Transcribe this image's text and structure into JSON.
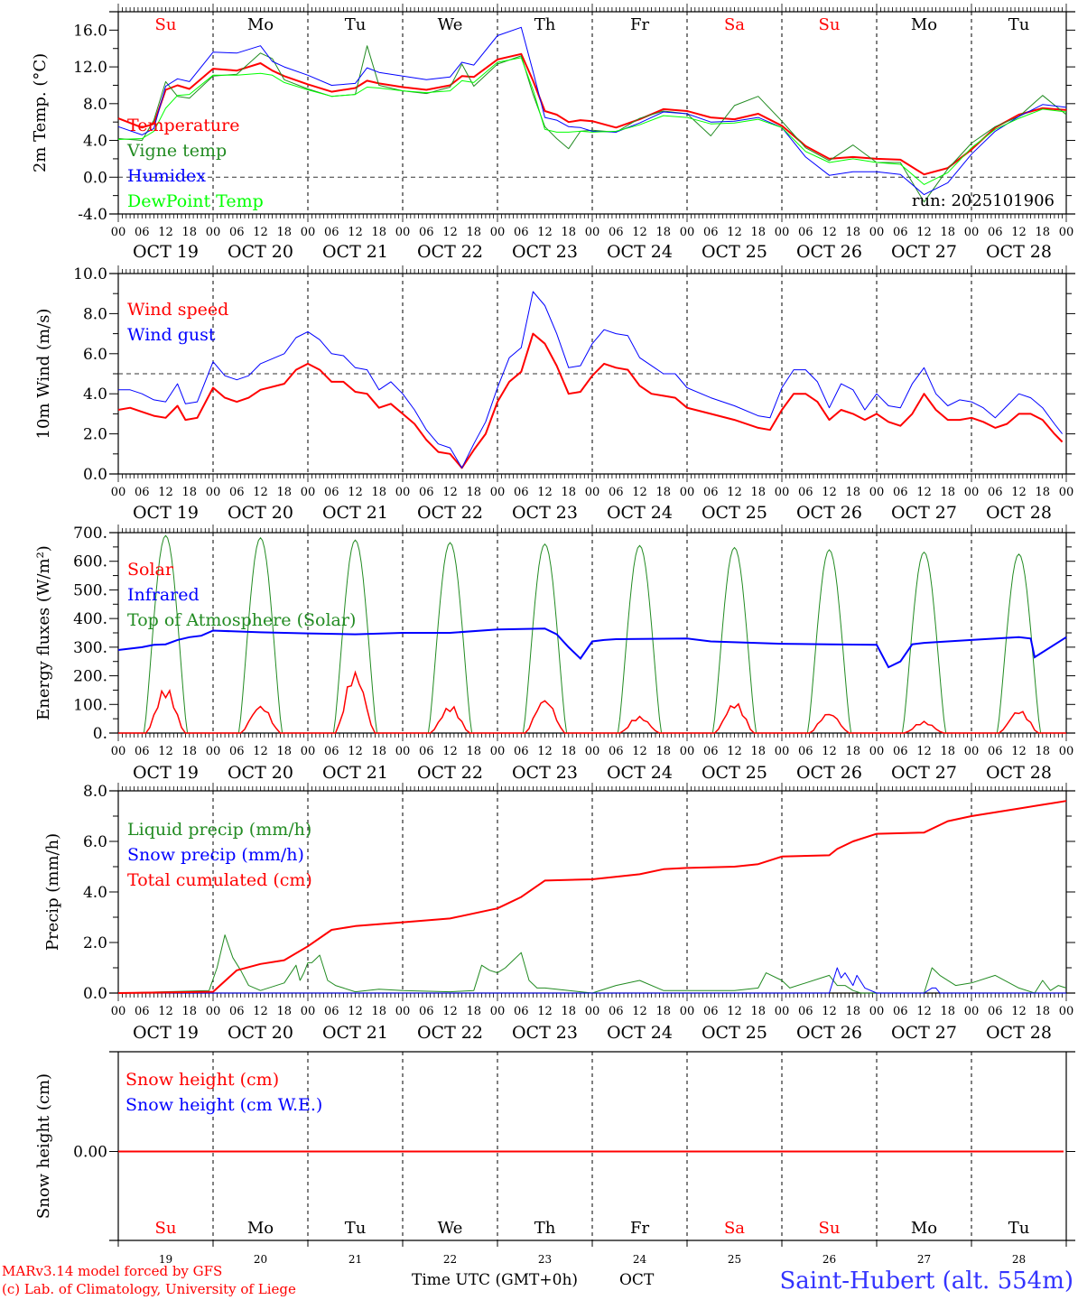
{
  "footer": {
    "model_line": "MARv3.14 model forced by GFS",
    "credit_line": "(c) Lab. of Climatology, University of Liege",
    "time_axis_label": "Time UTC (GMT+0h)",
    "month_label": "OCT",
    "station": "Saint-Hubert (alt. 554m)"
  },
  "colors": {
    "red": "#ff0000",
    "dark_green": "#228b22",
    "blue": "#0000ff",
    "light_green": "#00ff00",
    "black": "#000000"
  },
  "chart_data": [
    {
      "id": "temperature",
      "type": "line",
      "ylabel": "2m Temp. (°C)",
      "ylim": [
        -4,
        18
      ],
      "yticks": [
        "16.0",
        "12.0",
        "8.0",
        "4.0",
        "0.0",
        "-4.0"
      ],
      "ytick_values": [
        16,
        12,
        8,
        4,
        0,
        -4
      ],
      "reference_line": 0,
      "annotation": "run: 2025101906",
      "day_names": [
        "Su",
        "Mo",
        "Tu",
        "We",
        "Th",
        "Fr",
        "Sa",
        "Su",
        "Mo",
        "Tu"
      ],
      "day_name_colors": [
        "red",
        "black",
        "black",
        "black",
        "black",
        "black",
        "red",
        "red",
        "black",
        "black"
      ],
      "xtick_labels": [
        "00",
        "06",
        "12",
        "18"
      ],
      "date_labels": [
        "OCT 19",
        "OCT 20",
        "OCT 21",
        "OCT 22",
        "OCT 23",
        "OCT 24",
        "OCT 25",
        "OCT 26",
        "OCT 27",
        "OCT 28"
      ],
      "x_hours": [
        0,
        6,
        9,
        12,
        15,
        18,
        24,
        30,
        36,
        39,
        42,
        48,
        54,
        60,
        63,
        66,
        72,
        78,
        84,
        87,
        90,
        96,
        102,
        105,
        108,
        111,
        114,
        117,
        120,
        126,
        132,
        138,
        144,
        150,
        156,
        162,
        168,
        174,
        180,
        186,
        192,
        198,
        204,
        210,
        216,
        222,
        228,
        234,
        240
      ],
      "series": [
        {
          "name": "Temperature",
          "color": "red",
          "width": 2,
          "values": [
            6.4,
            5.4,
            5.8,
            9.5,
            10.0,
            9.6,
            11.8,
            11.6,
            12.4,
            11.6,
            11.0,
            10.1,
            9.3,
            9.7,
            10.5,
            10.2,
            9.8,
            9.5,
            10.0,
            11.0,
            10.9,
            12.8,
            13.4,
            10.5,
            7.2,
            6.8,
            6.0,
            6.2,
            6.1,
            5.4,
            6.3,
            7.4,
            7.2,
            6.5,
            6.3,
            6.9,
            5.6,
            3.4,
            2.0,
            2.2,
            2.0,
            1.9,
            0.3,
            1.0,
            3.0,
            5.4,
            6.8,
            7.5,
            7.3
          ]
        },
        {
          "name": "Vigne temp",
          "color": "dark_green",
          "width": 1,
          "values": [
            4.2,
            4.0,
            6.2,
            10.4,
            8.8,
            8.6,
            11.0,
            11.2,
            13.5,
            12.9,
            10.6,
            9.6,
            8.8,
            9.0,
            14.3,
            10.0,
            9.4,
            9.1,
            9.8,
            12.3,
            9.9,
            12.3,
            13.2,
            9.0,
            5.5,
            4.2,
            3.1,
            5.0,
            5.1,
            4.9,
            6.4,
            7.2,
            6.9,
            4.5,
            7.8,
            8.8,
            6.1,
            3.2,
            1.8,
            3.5,
            1.6,
            1.6,
            -2.7,
            0.9,
            3.7,
            5.5,
            6.6,
            8.9,
            6.8
          ]
        },
        {
          "name": "Humidex",
          "color": "blue",
          "width": 1,
          "values": [
            5.5,
            4.6,
            5.3,
            9.9,
            10.7,
            10.4,
            13.6,
            13.5,
            14.3,
            12.6,
            12.0,
            11.1,
            10.0,
            10.2,
            11.9,
            11.4,
            11.0,
            10.6,
            10.9,
            12.5,
            12.2,
            15.4,
            16.3,
            11.5,
            6.5,
            6.2,
            5.5,
            5.4,
            5.0,
            4.9,
            5.9,
            7.1,
            6.9,
            6.0,
            6.1,
            6.5,
            5.4,
            2.2,
            0.2,
            0.6,
            0.6,
            0.3,
            -1.9,
            -0.6,
            2.5,
            5.0,
            6.6,
            7.9,
            7.6
          ]
        },
        {
          "name": "DewPoint Temp",
          "color": "light_green",
          "width": 1,
          "values": [
            4.1,
            4.2,
            5.0,
            7.5,
            8.9,
            9.0,
            11.1,
            11.1,
            11.3,
            11.1,
            10.3,
            9.5,
            8.8,
            9.0,
            9.8,
            9.7,
            9.4,
            9.2,
            9.4,
            10.5,
            10.3,
            12.5,
            13.0,
            9.5,
            5.2,
            4.9,
            4.9,
            5.0,
            4.9,
            5.0,
            5.7,
            6.7,
            6.5,
            5.8,
            5.9,
            6.3,
            5.4,
            2.8,
            1.6,
            2.0,
            1.6,
            1.4,
            -0.8,
            0.5,
            3.2,
            5.2,
            6.4,
            7.4,
            7.1
          ]
        }
      ]
    },
    {
      "id": "wind",
      "type": "line",
      "ylabel": "10m Wind (m/s)",
      "ylim": [
        0,
        10
      ],
      "yticks": [
        "10.0",
        "8.0",
        "6.0",
        "4.0",
        "2.0",
        "0.0"
      ],
      "ytick_values": [
        10,
        8,
        6,
        4,
        2,
        0
      ],
      "reference_line": 5,
      "xtick_labels": [
        "00",
        "06",
        "12",
        "18"
      ],
      "date_labels": [
        "OCT 19",
        "OCT 20",
        "OCT 21",
        "OCT 22",
        "OCT 23",
        "OCT 24",
        "OCT 25",
        "OCT 26",
        "OCT 27",
        "OCT 28"
      ],
      "x_hours": [
        0,
        3,
        6,
        9,
        12,
        15,
        17,
        20,
        24,
        27,
        30,
        33,
        36,
        42,
        45,
        48,
        51,
        54,
        57,
        60,
        63,
        66,
        69,
        72,
        75,
        78,
        81,
        84,
        87,
        90,
        93,
        96,
        99,
        102,
        105,
        108,
        111,
        114,
        117,
        120,
        123,
        126,
        129,
        132,
        135,
        138,
        141,
        144,
        150,
        156,
        162,
        165,
        168,
        171,
        174,
        177,
        180,
        183,
        186,
        189,
        192,
        195,
        198,
        201,
        204,
        207,
        210,
        213,
        216,
        219,
        222,
        225,
        228,
        231,
        234,
        237,
        239
      ],
      "series": [
        {
          "name": "Wind speed",
          "color": "red",
          "width": 2,
          "values": [
            3.2,
            3.3,
            3.1,
            2.9,
            2.8,
            3.4,
            2.7,
            2.8,
            4.3,
            3.8,
            3.6,
            3.8,
            4.2,
            4.5,
            5.2,
            5.5,
            5.2,
            4.6,
            4.6,
            4.1,
            4.0,
            3.3,
            3.5,
            3.0,
            2.5,
            1.7,
            1.1,
            1.0,
            0.3,
            1.2,
            2.0,
            3.6,
            4.6,
            5.1,
            7.0,
            6.5,
            5.4,
            4.0,
            4.1,
            4.9,
            5.5,
            5.3,
            5.2,
            4.4,
            4.0,
            3.9,
            3.8,
            3.3,
            3.0,
            2.7,
            2.3,
            2.2,
            3.2,
            4.0,
            4.0,
            3.6,
            2.7,
            3.2,
            3.0,
            2.7,
            3.0,
            2.6,
            2.4,
            3.0,
            4.0,
            3.2,
            2.7,
            2.7,
            2.8,
            2.6,
            2.3,
            2.5,
            3.0,
            3.0,
            2.7,
            2.0,
            1.6
          ]
        },
        {
          "name": "Wind gust",
          "color": "blue",
          "width": 1,
          "values": [
            4.2,
            4.2,
            4.0,
            3.7,
            3.6,
            4.5,
            3.5,
            3.6,
            5.6,
            4.9,
            4.7,
            4.9,
            5.5,
            6.0,
            6.8,
            7.1,
            6.7,
            6.0,
            5.9,
            5.3,
            5.2,
            4.2,
            4.6,
            4.0,
            3.2,
            2.2,
            1.5,
            1.3,
            0.3,
            1.5,
            2.6,
            4.3,
            5.8,
            6.3,
            9.1,
            8.4,
            7.0,
            5.3,
            5.4,
            6.5,
            7.2,
            7.0,
            6.9,
            5.8,
            5.4,
            5.0,
            5.0,
            4.3,
            3.8,
            3.4,
            2.9,
            2.8,
            4.3,
            5.2,
            5.2,
            4.6,
            3.3,
            4.5,
            4.2,
            3.2,
            4.0,
            3.4,
            3.3,
            4.5,
            5.3,
            4.0,
            3.4,
            3.7,
            3.6,
            3.3,
            2.8,
            3.4,
            4.0,
            3.8,
            3.3,
            2.5,
            2.0
          ]
        }
      ]
    },
    {
      "id": "energy",
      "type": "line",
      "ylabel": "Energy fluxes (W/m²)",
      "ylim": [
        0,
        700
      ],
      "yticks": [
        "700.",
        "600.",
        "500.",
        "400.",
        "300.",
        "200.",
        "100.",
        "0."
      ],
      "ytick_values": [
        700,
        600,
        500,
        400,
        300,
        200,
        100,
        0
      ],
      "xtick_labels": [
        "00",
        "06",
        "12",
        "18"
      ],
      "date_labels": [
        "OCT 19",
        "OCT 20",
        "OCT 21",
        "OCT 22",
        "OCT 23",
        "OCT 24",
        "OCT 25",
        "OCT 26",
        "OCT 27",
        "OCT 28"
      ],
      "daily_toa_peaks": [
        690,
        682,
        674,
        665,
        660,
        655,
        648,
        640,
        632,
        625
      ],
      "daily_solar_peaks": [
        165,
        108,
        235,
        100,
        135,
        62,
        115,
        80,
        42,
        88
      ],
      "series": [
        {
          "name": "Solar",
          "color": "red",
          "width": 1,
          "daily": true,
          "note": "daytime surface solar flux, peaks per day in daily_solar_peaks"
        },
        {
          "name": "Infrared",
          "color": "blue",
          "width": 2,
          "x_hours": [
            0,
            6,
            9,
            12,
            15,
            18,
            21,
            24,
            36,
            42,
            48,
            60,
            72,
            84,
            96,
            108,
            111,
            114,
            117,
            120,
            123,
            126,
            144,
            150,
            168,
            180,
            192,
            195,
            198,
            201,
            204,
            216,
            228,
            231,
            232,
            240
          ],
          "values": [
            290,
            300,
            308,
            310,
            325,
            335,
            340,
            358,
            352,
            350,
            348,
            345,
            350,
            350,
            362,
            365,
            345,
            300,
            260,
            320,
            325,
            328,
            330,
            320,
            312,
            310,
            308,
            230,
            250,
            310,
            315,
            325,
            335,
            330,
            265,
            335
          ]
        },
        {
          "name": "Top of Atmosphere (Solar)",
          "color": "dark_green",
          "width": 1,
          "daily": true,
          "note": "clear-sky TOA solar, peaks per day in daily_toa_peaks"
        }
      ]
    },
    {
      "id": "precip",
      "type": "line",
      "ylabel": "Precip (mm/h)",
      "ylim": [
        0,
        8
      ],
      "yticks": [
        "8.0",
        "6.0",
        "4.0",
        "2.0",
        "0.0"
      ],
      "ytick_values": [
        8,
        6,
        4,
        2,
        0
      ],
      "xtick_labels": [
        "00",
        "06",
        "12",
        "18"
      ],
      "date_labels": [
        "OCT 19",
        "OCT 20",
        "OCT 21",
        "OCT 22",
        "OCT 23",
        "OCT 24",
        "OCT 25",
        "OCT 26",
        "OCT 27",
        "OCT 28"
      ],
      "series": [
        {
          "name": "Liquid precip (mm/h)",
          "color": "dark_green",
          "width": 1,
          "x_hours": [
            0,
            23,
            25,
            27,
            29,
            31,
            33,
            36,
            42,
            45,
            46,
            47,
            48,
            49,
            51,
            53,
            55,
            57,
            60,
            66,
            72,
            84,
            90,
            92,
            94,
            96,
            98,
            100,
            102,
            104,
            106,
            108,
            120,
            126,
            132,
            138,
            144,
            156,
            162,
            164,
            168,
            170,
            180,
            182,
            184,
            186,
            188,
            192,
            204,
            206,
            208,
            212,
            216,
            222,
            228,
            232,
            234,
            236,
            238,
            240
          ],
          "values": [
            0,
            0.1,
            1.0,
            2.3,
            1.4,
            0.9,
            0.3,
            0.1,
            0.4,
            1.1,
            0.5,
            0.8,
            1.2,
            1.2,
            1.5,
            0.5,
            0.3,
            0.2,
            0.05,
            0.15,
            0.1,
            0.05,
            0.1,
            1.1,
            0.9,
            0.8,
            1.0,
            1.3,
            1.6,
            0.5,
            0.2,
            0.2,
            0.0,
            0.3,
            0.5,
            0.1,
            0.1,
            0.1,
            0.2,
            0.8,
            0.5,
            0.2,
            0.7,
            0.3,
            0.3,
            0.1,
            0.0,
            0.0,
            0.0,
            1.0,
            0.7,
            0.3,
            0.4,
            0.7,
            0.2,
            0.0,
            0.5,
            0.1,
            0.3,
            0.2
          ]
        },
        {
          "name": "Snow precip (mm/h)",
          "color": "blue",
          "width": 1,
          "x_hours": [
            0,
            180,
            182,
            183,
            184,
            186,
            187,
            189,
            192,
            204,
            206,
            207,
            208,
            240
          ],
          "values": [
            0,
            0,
            1.0,
            0.6,
            0.8,
            0.3,
            0.7,
            0.2,
            0.0,
            0.0,
            0.2,
            0.2,
            0.0,
            0.0
          ]
        },
        {
          "name": "Total cumulated (cm)",
          "color": "red",
          "width": 2,
          "x_hours": [
            0,
            24,
            30,
            36,
            42,
            48,
            54,
            60,
            72,
            84,
            96,
            102,
            108,
            120,
            132,
            138,
            144,
            156,
            162,
            168,
            180,
            182,
            186,
            192,
            204,
            210,
            216,
            228,
            234,
            240
          ],
          "values": [
            0,
            0.05,
            0.9,
            1.15,
            1.3,
            1.85,
            2.5,
            2.65,
            2.8,
            2.95,
            3.35,
            3.8,
            4.45,
            4.5,
            4.7,
            4.9,
            4.95,
            5.0,
            5.1,
            5.4,
            5.45,
            5.7,
            6.0,
            6.3,
            6.35,
            6.8,
            7.0,
            7.3,
            7.45,
            7.6
          ]
        }
      ]
    },
    {
      "id": "snow",
      "type": "line",
      "ylabel": "Snow height (cm)",
      "ytick_label": "0.00",
      "day_names": [
        "Su",
        "Mo",
        "Tu",
        "We",
        "Th",
        "Fr",
        "Sa",
        "Su",
        "Mo",
        "Tu"
      ],
      "day_name_colors": [
        "red",
        "black",
        "black",
        "black",
        "black",
        "black",
        "red",
        "red",
        "black",
        "black"
      ],
      "day_numbers": [
        "19",
        "20",
        "21",
        "22",
        "23",
        "24",
        "25",
        "26",
        "27",
        "28"
      ],
      "series": [
        {
          "name": "Snow height (cm)",
          "color": "red",
          "width": 2,
          "values": [
            0,
            0
          ]
        },
        {
          "name": "Snow height (cm W.E.)",
          "color": "blue",
          "width": 1,
          "values": [
            0,
            0
          ]
        }
      ]
    }
  ]
}
